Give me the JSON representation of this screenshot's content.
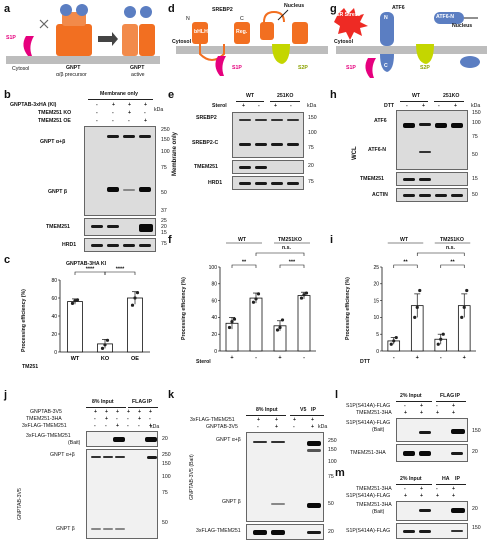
{
  "figure": {
    "panel_letters": [
      "a",
      "b",
      "c",
      "d",
      "e",
      "f",
      "g",
      "h",
      "i",
      "j",
      "k",
      "l",
      "m"
    ],
    "a": {
      "s1p": "S1P",
      "cytosol": "Cytosol",
      "gnpt_precursor": "GNPT",
      "precursor_sub": "α/β precursor",
      "gnpt_active": "GNPT",
      "active_sub": "active",
      "subunit_labels": [
        "γ",
        "γ",
        "α",
        "β"
      ]
    },
    "b": {
      "header": "Membrane only",
      "row_labels": [
        "GNPTAB-3xHA (KI)",
        "TMEM251 KO",
        "TMEM251 OE"
      ],
      "signs": [
        [
          "-",
          "+",
          "+",
          "+"
        ],
        [
          "-",
          "-",
          "+",
          "-"
        ],
        [
          "-",
          "-",
          "-",
          "+"
        ]
      ],
      "kda": "kDa",
      "blots": [
        "GNPT α+β",
        "GNPT β",
        "TMEM251",
        "HRD1"
      ],
      "markers": [
        "250",
        "150",
        "100",
        "75",
        "50",
        "37",
        "25",
        "20",
        "15",
        "75"
      ]
    },
    "c": {
      "title": "GNPTAB-3HA KI",
      "ylabel": "Processing efficiency (%)",
      "xlabel_prefix": "TM251",
      "stars": [
        "****",
        "****"
      ]
    },
    "d": {
      "srebp2": "SREBP2",
      "n": "N",
      "c": "C",
      "bhlh": "bHLH",
      "reg": "Reg.",
      "nucleus": "Nucleus",
      "cytosol": "Cytosol",
      "s1p": "S1P",
      "s2p": "S2P"
    },
    "e": {
      "groups": [
        "WT",
        "251KO"
      ],
      "sterol_label": "Sterol",
      "signs": [
        "+",
        "-",
        "+",
        "-"
      ],
      "side_label": "Membrane only",
      "kda": "kDa",
      "blots": [
        "SREBP2",
        "SREBP2-C",
        "TMEM251",
        "HRD1"
      ],
      "markers": [
        "150",
        "100",
        "75",
        "20",
        "75"
      ]
    },
    "f": {
      "ylabel": "Processing efficiency (%)",
      "groups": [
        "WT",
        "TM251KO"
      ],
      "stars": [
        "**",
        "***"
      ],
      "ns": "n.s.",
      "sterol": "Sterol",
      "signs": [
        "+",
        "-",
        "+",
        "-"
      ]
    },
    "g": {
      "er_stress": "ER Stress",
      "atf6": "ATF6",
      "atf6n": "ATF6-N",
      "nucleus": "Nucleus",
      "cytosol": "Cytosol",
      "s1p": "S1P",
      "s2p": "S2P",
      "n": "N",
      "c": "C"
    },
    "h": {
      "groups": [
        "WT",
        "251KO"
      ],
      "dtt_label": "DTT",
      "signs": [
        "-",
        "+",
        "-",
        "+"
      ],
      "side_label": "WCL",
      "kda": "kDa",
      "blots": [
        "ATF6",
        "ATF6-N",
        "TMEM251",
        "ACTIN"
      ],
      "markers": [
        "150",
        "100",
        "75",
        "50",
        "15",
        "50"
      ]
    },
    "i": {
      "ylabel": "Processing efficiency (%)",
      "groups": [
        "WT",
        "TM251KO"
      ],
      "stars": [
        "**",
        "**"
      ],
      "ns": "n.s.",
      "dtt": "DTT",
      "signs": [
        "-",
        "+",
        "-",
        "+"
      ]
    },
    "j": {
      "row_labels": [
        "GNPTAB-3V5",
        "TMEM251-3HA",
        "3xFLAG-TMEM251"
      ],
      "input": "8% Input",
      "flag": "FLAG",
      "ip": "IP",
      "signs": [
        [
          "+",
          "+",
          "+",
          "+",
          "+",
          "+"
        ],
        [
          "-",
          "+",
          "-",
          "-",
          "+",
          "-"
        ],
        [
          "-",
          "-",
          "+",
          "-",
          "-",
          "+"
        ]
      ],
      "bait": "3xFLAG-TMEM251",
      "bait_sub": "(Bait)",
      "side": "GNPTAB-3V5",
      "gnpt_ab": "GNPT α+β",
      "gnpt_b": "GNPT β",
      "kda": "kDa",
      "markers": [
        "20",
        "250",
        "150",
        "100",
        "75",
        "50"
      ]
    },
    "k": {
      "row_labels": [
        "3xFLAG-TMEM251",
        "GNPTAB-3V5"
      ],
      "input": "8% Input",
      "v5": "V5",
      "ip": "IP",
      "signs": [
        [
          "+",
          "+",
          "+",
          "+"
        ],
        [
          "-",
          "+",
          "-",
          "+"
        ]
      ],
      "side": "GNPTAB-3V5 (Bait)",
      "gnpt_ab": "GNPT α+β",
      "gnpt_b": "GNPT β",
      "bottom": "3xFLAG-TMEM251",
      "kda": "kDa",
      "markers": [
        "250",
        "150",
        "100",
        "75",
        "50",
        "20"
      ]
    },
    "l": {
      "row_labels": [
        "S1P(S414A)-FLAG",
        "TMEM251-3HA"
      ],
      "input": "2% Input",
      "flag": "FLAG",
      "ip": "IP",
      "signs": [
        [
          "-",
          "+",
          "-",
          "+"
        ],
        [
          "+",
          "+",
          "+",
          "+"
        ]
      ],
      "blot1": "S1P(S414A)-FLAG",
      "blot1_sub": "(Bait)",
      "blot2": "TMEM251-3HA",
      "markers": [
        "150",
        "20"
      ]
    },
    "m": {
      "row_labels": [
        "TMEM251-3HA",
        "S1P(S414A)-FLAG"
      ],
      "input": "2% Input",
      "ha": "HA",
      "ip": "IP",
      "signs": [
        [
          "-",
          "+",
          "-",
          "+"
        ],
        [
          "+",
          "+",
          "+",
          "+"
        ]
      ],
      "blot1": "TMEM251-3HA",
      "blot1_sub": "(Bait)",
      "blot2": "S1P(S414A)-FLAG",
      "markers": [
        "20",
        "150"
      ]
    }
  },
  "chart_data": [
    {
      "panel": "c",
      "type": "bar",
      "title": "GNPTAB-3HA KI",
      "ylabel": "Processing efficiency (%)",
      "categories": [
        "WT",
        "KO",
        "OE"
      ],
      "values": [
        56,
        9,
        60
      ],
      "errors": [
        3,
        5,
        7
      ],
      "points": [
        [
          54,
          57,
          58
        ],
        [
          4,
          8,
          13
        ],
        [
          52,
          60,
          66
        ]
      ],
      "ylim": [
        0,
        80
      ],
      "yticks": [
        0,
        20,
        40,
        60,
        80
      ],
      "color": "#ffffff"
    },
    {
      "panel": "f",
      "type": "bar",
      "ylabel": "Processing efficiency (%)",
      "categories": [
        "+",
        "-",
        "+",
        "-"
      ],
      "groups": [
        "WT",
        "TM251KO"
      ],
      "values": [
        33,
        63,
        30,
        66
      ],
      "errors": [
        7,
        6,
        6,
        4
      ],
      "points": [
        [
          28,
          35,
          38
        ],
        [
          58,
          62,
          68
        ],
        [
          25,
          28,
          37
        ],
        [
          63,
          67,
          69
        ]
      ],
      "ylim": [
        0,
        100
      ],
      "yticks": [
        0,
        20,
        40,
        60,
        80,
        100
      ],
      "color": "#ffffff"
    },
    {
      "panel": "i",
      "type": "bar",
      "ylabel": "Processing efficiency (%)",
      "categories": [
        "-",
        "+",
        "-",
        "+"
      ],
      "groups": [
        "WT",
        "TM251KO"
      ],
      "values": [
        3,
        13.5,
        3.5,
        13.5
      ],
      "errors": [
        1,
        3.5,
        1.5,
        3.5
      ],
      "points": [
        [
          2,
          3,
          4
        ],
        [
          10,
          13,
          18
        ],
        [
          2,
          3.5,
          5
        ],
        [
          10,
          13,
          18
        ]
      ],
      "ylim": [
        0,
        25
      ],
      "yticks": [
        0,
        5,
        10,
        15,
        20,
        25
      ],
      "color": "#ffffff"
    }
  ]
}
